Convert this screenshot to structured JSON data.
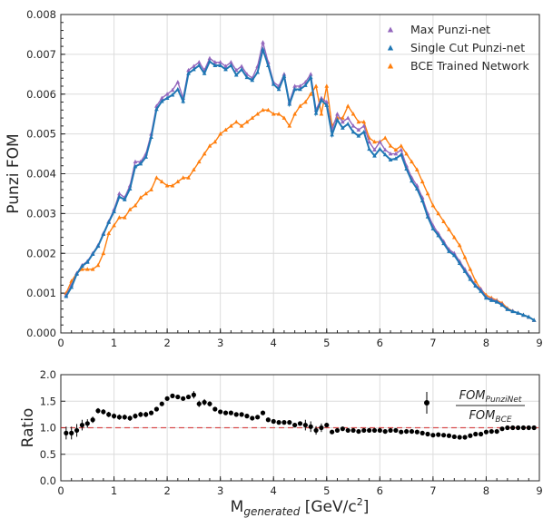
{
  "chart_data": [
    {
      "type": "line",
      "ylabel": "Punzi FOM",
      "xlim": [
        0,
        9
      ],
      "ylim": [
        0,
        0.008
      ],
      "xticks": [
        "0",
        "1",
        "2",
        "3",
        "4",
        "5",
        "6",
        "7",
        "8",
        "9"
      ],
      "yticks": [
        "0.000",
        "0.001",
        "0.002",
        "0.003",
        "0.004",
        "0.005",
        "0.006",
        "0.007",
        "0.008"
      ],
      "grid": true,
      "legend_position": "top-right",
      "x": [
        0.1,
        0.2,
        0.3,
        0.4,
        0.5,
        0.6,
        0.7,
        0.8,
        0.9,
        1.0,
        1.1,
        1.2,
        1.3,
        1.4,
        1.5,
        1.6,
        1.7,
        1.8,
        1.9,
        2.0,
        2.1,
        2.2,
        2.3,
        2.4,
        2.5,
        2.6,
        2.7,
        2.8,
        2.9,
        3.0,
        3.1,
        3.2,
        3.3,
        3.4,
        3.5,
        3.6,
        3.7,
        3.8,
        3.9,
        4.0,
        4.1,
        4.2,
        4.3,
        4.4,
        4.5,
        4.6,
        4.7,
        4.8,
        4.9,
        5.0,
        5.1,
        5.2,
        5.3,
        5.4,
        5.5,
        5.6,
        5.7,
        5.8,
        5.9,
        6.0,
        6.1,
        6.2,
        6.3,
        6.4,
        6.5,
        6.6,
        6.7,
        6.8,
        6.9,
        7.0,
        7.1,
        7.2,
        7.3,
        7.4,
        7.5,
        7.6,
        7.7,
        7.8,
        7.9,
        8.0,
        8.1,
        8.2,
        8.3,
        8.4,
        8.5,
        8.6,
        8.7,
        8.8,
        8.9
      ],
      "series": [
        {
          "name": "Max Punzi-net",
          "color": "#9467bd",
          "marker": "triangle",
          "values": [
            0.00095,
            0.0012,
            0.0015,
            0.0017,
            0.0018,
            0.002,
            0.0022,
            0.0025,
            0.0028,
            0.0031,
            0.0035,
            0.0034,
            0.0037,
            0.0043,
            0.0043,
            0.0045,
            0.005,
            0.0057,
            0.0059,
            0.006,
            0.0061,
            0.0063,
            0.0059,
            0.0066,
            0.0067,
            0.0068,
            0.0066,
            0.0069,
            0.0068,
            0.0068,
            0.0067,
            0.0068,
            0.0066,
            0.0067,
            0.0065,
            0.0064,
            0.0067,
            0.0073,
            0.0068,
            0.0063,
            0.0062,
            0.0065,
            0.0058,
            0.0062,
            0.0062,
            0.0063,
            0.0065,
            0.0056,
            0.0059,
            0.0058,
            0.0051,
            0.0055,
            0.0053,
            0.0054,
            0.0052,
            0.0051,
            0.0052,
            0.0048,
            0.0046,
            0.0048,
            0.0046,
            0.0045,
            0.0045,
            0.0046,
            0.0042,
            0.0039,
            0.0037,
            0.0034,
            0.003,
            0.0027,
            0.0025,
            0.0023,
            0.0021,
            0.002,
            0.0018,
            0.0016,
            0.0014,
            0.0012,
            0.0011,
            0.0009,
            0.00085,
            0.0008,
            0.00072,
            0.0006,
            0.00055,
            0.0005,
            0.00045,
            0.0004,
            0.00032
          ]
        },
        {
          "name": "Single Cut Punzi-net",
          "color": "#1f77b4",
          "marker": "triangle",
          "values": [
            0.00092,
            0.00115,
            0.00148,
            0.00168,
            0.00178,
            0.00198,
            0.00218,
            0.00248,
            0.00278,
            0.00305,
            0.00342,
            0.00335,
            0.00362,
            0.00418,
            0.00425,
            0.00442,
            0.00492,
            0.00562,
            0.00582,
            0.0059,
            0.00598,
            0.00612,
            0.00582,
            0.00652,
            0.00662,
            0.00672,
            0.00652,
            0.00682,
            0.00672,
            0.00672,
            0.00662,
            0.00672,
            0.00648,
            0.00662,
            0.00642,
            0.00635,
            0.00655,
            0.00712,
            0.00672,
            0.00625,
            0.00612,
            0.00645,
            0.00575,
            0.00612,
            0.00612,
            0.00622,
            0.00642,
            0.00552,
            0.00585,
            0.00572,
            0.00498,
            0.00535,
            0.00515,
            0.00525,
            0.00505,
            0.00495,
            0.00505,
            0.00462,
            0.00445,
            0.00462,
            0.00448,
            0.00435,
            0.00438,
            0.00448,
            0.00412,
            0.00382,
            0.00362,
            0.00332,
            0.00292,
            0.00262,
            0.00245,
            0.00225,
            0.00205,
            0.00195,
            0.00175,
            0.00155,
            0.00135,
            0.00118,
            0.00105,
            0.00088,
            0.00082,
            0.00078,
            0.0007,
            0.00059,
            0.00054,
            0.0005,
            0.00045,
            0.0004,
            0.00032
          ]
        },
        {
          "name": "BCE Trained Network",
          "color": "#ff7f0e",
          "marker": "triangle",
          "values": [
            0.001,
            0.0013,
            0.0015,
            0.0016,
            0.0016,
            0.0016,
            0.0017,
            0.002,
            0.0025,
            0.0027,
            0.0029,
            0.0029,
            0.0031,
            0.0032,
            0.0034,
            0.0035,
            0.0036,
            0.0039,
            0.0038,
            0.0037,
            0.0037,
            0.0038,
            0.0039,
            0.0039,
            0.0041,
            0.0043,
            0.0045,
            0.0047,
            0.0048,
            0.005,
            0.0051,
            0.0052,
            0.0053,
            0.0052,
            0.0053,
            0.0054,
            0.0055,
            0.0056,
            0.0056,
            0.0055,
            0.0055,
            0.0054,
            0.0052,
            0.0055,
            0.0057,
            0.0058,
            0.006,
            0.0062,
            0.0055,
            0.0062,
            0.0052,
            0.0054,
            0.0054,
            0.0057,
            0.0055,
            0.0053,
            0.0053,
            0.0049,
            0.0048,
            0.0048,
            0.0049,
            0.0047,
            0.0046,
            0.0047,
            0.0045,
            0.0043,
            0.0041,
            0.0038,
            0.0035,
            0.0032,
            0.003,
            0.0028,
            0.0026,
            0.0024,
            0.0022,
            0.0019,
            0.0016,
            0.0013,
            0.0011,
            0.00095,
            0.00088,
            0.00082,
            0.00075,
            0.00062,
            0.00055,
            0.0005,
            0.00045,
            0.0004,
            0.00032
          ]
        }
      ]
    },
    {
      "type": "scatter",
      "ylabel": "Ratio",
      "xlabel_main": "M",
      "xlabel_sub": "generated",
      "xlabel_unit_before": " [GeV/c",
      "xlabel_unit_sup": "2",
      "xlabel_unit_after": "]",
      "xlim": [
        0,
        9
      ],
      "ylim": [
        0,
        2
      ],
      "xticks": [
        "0",
        "1",
        "2",
        "3",
        "4",
        "5",
        "6",
        "7",
        "8",
        "9"
      ],
      "yticks": [
        "0.0",
        "0.5",
        "1.0",
        "1.5",
        "2.0"
      ],
      "grid": true,
      "reference_line": 1.0,
      "reference_color": "#d62728",
      "point_color": "#000000",
      "legend_numerator": "FOM",
      "legend_numerator_sub": "PunziNet",
      "legend_denominator": "FOM",
      "legend_denominator_sub": "BCE",
      "legend_marker_y": 1.47,
      "x": [
        0.1,
        0.2,
        0.3,
        0.4,
        0.5,
        0.6,
        0.7,
        0.8,
        0.9,
        1.0,
        1.1,
        1.2,
        1.3,
        1.4,
        1.5,
        1.6,
        1.7,
        1.8,
        1.9,
        2.0,
        2.1,
        2.2,
        2.3,
        2.4,
        2.5,
        2.6,
        2.7,
        2.8,
        2.9,
        3.0,
        3.1,
        3.2,
        3.3,
        3.4,
        3.5,
        3.6,
        3.7,
        3.8,
        3.9,
        4.0,
        4.1,
        4.2,
        4.3,
        4.4,
        4.5,
        4.6,
        4.7,
        4.8,
        4.9,
        5.0,
        5.1,
        5.2,
        5.3,
        5.4,
        5.5,
        5.6,
        5.7,
        5.8,
        5.9,
        6.0,
        6.1,
        6.2,
        6.3,
        6.4,
        6.5,
        6.6,
        6.7,
        6.8,
        6.9,
        7.0,
        7.1,
        7.2,
        7.3,
        7.4,
        7.5,
        7.6,
        7.7,
        7.8,
        7.9,
        8.0,
        8.1,
        8.2,
        8.3,
        8.4,
        8.5,
        8.6,
        8.7,
        8.8,
        8.9
      ],
      "values": [
        0.9,
        0.9,
        0.95,
        1.05,
        1.08,
        1.15,
        1.32,
        1.3,
        1.25,
        1.22,
        1.2,
        1.2,
        1.18,
        1.22,
        1.25,
        1.25,
        1.28,
        1.35,
        1.45,
        1.55,
        1.6,
        1.58,
        1.55,
        1.58,
        1.62,
        1.45,
        1.48,
        1.45,
        1.35,
        1.3,
        1.28,
        1.28,
        1.25,
        1.25,
        1.22,
        1.18,
        1.2,
        1.28,
        1.15,
        1.12,
        1.1,
        1.1,
        1.1,
        1.05,
        1.08,
        1.05,
        1.02,
        0.95,
        1.0,
        1.05,
        0.92,
        0.95,
        0.98,
        0.95,
        0.95,
        0.93,
        0.95,
        0.95,
        0.95,
        0.95,
        0.93,
        0.95,
        0.95,
        0.92,
        0.93,
        0.93,
        0.92,
        0.9,
        0.88,
        0.86,
        0.87,
        0.86,
        0.85,
        0.83,
        0.82,
        0.82,
        0.85,
        0.88,
        0.88,
        0.92,
        0.93,
        0.93,
        0.98,
        1.0,
        1.0,
        1.0,
        1.0,
        1.0,
        1.0
      ],
      "errors": [
        0.12,
        0.12,
        0.12,
        0.1,
        0.08,
        0.06,
        0.05,
        0.05,
        0.05,
        0.05,
        0.05,
        0.05,
        0.05,
        0.05,
        0.05,
        0.05,
        0.04,
        0.04,
        0.04,
        0.04,
        0.04,
        0.04,
        0.04,
        0.04,
        0.07,
        0.06,
        0.06,
        0.05,
        0.04,
        0.04,
        0.04,
        0.04,
        0.04,
        0.04,
        0.04,
        0.04,
        0.04,
        0.04,
        0.04,
        0.04,
        0.04,
        0.04,
        0.04,
        0.04,
        0.04,
        0.1,
        0.1,
        0.08,
        0.08,
        0.04,
        0.04,
        0.04,
        0.04,
        0.04,
        0.04,
        0.04,
        0.04,
        0.04,
        0.04,
        0.04,
        0.04,
        0.04,
        0.04,
        0.04,
        0.04,
        0.04,
        0.04,
        0.03,
        0.03,
        0.03,
        0.03,
        0.03,
        0.03,
        0.03,
        0.03,
        0.03,
        0.03,
        0.03,
        0.03,
        0.03,
        0.03,
        0.03,
        0.03,
        0.03,
        0.03,
        0.03,
        0.03,
        0.03,
        0.03
      ]
    }
  ]
}
